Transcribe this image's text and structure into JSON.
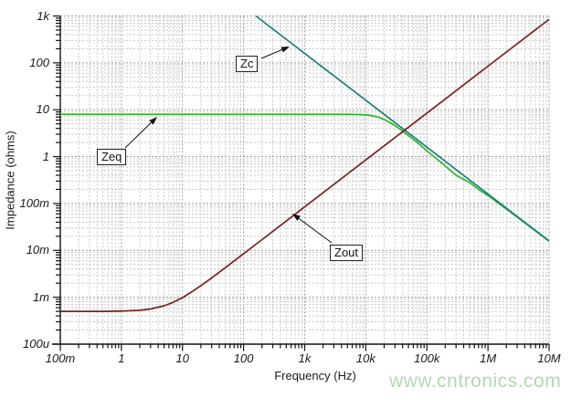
{
  "watermark": {
    "text": "www.cntronics.com",
    "color": "#b2d8b2"
  },
  "axes": {
    "x_title": "Frequency (Hz)",
    "y_title": "Impedance (ohms)",
    "x_ticks": [
      {
        "label": "100m",
        "value": 0.1
      },
      {
        "label": "1",
        "value": 1
      },
      {
        "label": "10",
        "value": 10
      },
      {
        "label": "100",
        "value": 100
      },
      {
        "label": "1k",
        "value": 1000
      },
      {
        "label": "10k",
        "value": 10000
      },
      {
        "label": "100k",
        "value": 100000
      },
      {
        "label": "1M",
        "value": 1000000
      },
      {
        "label": "10M",
        "value": 10000000
      }
    ],
    "y_ticks": [
      {
        "label": "1k",
        "value": 1000
      },
      {
        "label": "100",
        "value": 100
      },
      {
        "label": "10",
        "value": 10
      },
      {
        "label": "1",
        "value": 1
      },
      {
        "label": "100m",
        "value": 0.1
      },
      {
        "label": "10m",
        "value": 0.01
      },
      {
        "label": "1m",
        "value": 0.001
      },
      {
        "label": "100u",
        "value": 0.0001
      }
    ]
  },
  "chart_data": {
    "type": "line",
    "title": "",
    "xlabel": "Frequency (Hz)",
    "ylabel": "Impedance (ohms)",
    "x_scale": "log",
    "y_scale": "log",
    "xlim": [
      0.1,
      10000000
    ],
    "ylim": [
      0.0001,
      1000
    ],
    "grid": true,
    "legend_position": "inline-callouts",
    "colors": {
      "grid_major": "#9b9b9b",
      "grid_minor": "#c6c6c6",
      "axis": "#111111",
      "arrow": "#111111"
    },
    "series": [
      {
        "name": "Zeq",
        "color": "#29b829",
        "points": [
          [
            0.1,
            8
          ],
          [
            1,
            8
          ],
          [
            10,
            8
          ],
          [
            100,
            8
          ],
          [
            1000,
            8
          ],
          [
            3000,
            7.98
          ],
          [
            6000,
            7.95
          ],
          [
            8000,
            7.9
          ],
          [
            10000,
            7.75
          ],
          [
            12000,
            7.55
          ],
          [
            16000,
            7.0
          ],
          [
            20000,
            6.2
          ],
          [
            25000,
            5.3
          ],
          [
            30000,
            4.6
          ],
          [
            40000,
            3.5
          ],
          [
            50000,
            2.8
          ],
          [
            70000,
            2.0
          ],
          [
            100000,
            1.32
          ],
          [
            150000,
            0.86
          ],
          [
            200000,
            0.63
          ],
          [
            300000,
            0.4
          ],
          [
            500000,
            0.28
          ],
          [
            700000,
            0.2
          ],
          [
            1000000,
            0.148
          ],
          [
            2000000,
            0.0763
          ],
          [
            5000000,
            0.0311
          ],
          [
            10000000,
            0.0157
          ]
        ]
      },
      {
        "name": "Zc",
        "color": "#1b7e7d",
        "points": [
          [
            159.2,
            1000
          ],
          [
            1591.5,
            100
          ],
          [
            15915,
            10
          ],
          [
            159155,
            1
          ],
          [
            1591549,
            0.1
          ],
          [
            10000000,
            0.0159
          ]
        ]
      },
      {
        "name": "Zout",
        "color": "#7a2020",
        "points": [
          [
            0.1,
            0.0005
          ],
          [
            0.5,
            0.000501
          ],
          [
            1,
            0.000507
          ],
          [
            2,
            0.000528
          ],
          [
            3,
            0.000561
          ],
          [
            5,
            0.000656
          ],
          [
            7,
            0.000776
          ],
          [
            10,
            0.000985
          ],
          [
            15,
            0.00137
          ],
          [
            20,
            0.00177
          ],
          [
            30,
            0.00259
          ],
          [
            50,
            0.00427
          ],
          [
            70,
            0.00596
          ],
          [
            100,
            0.00849
          ],
          [
            200,
            0.01697
          ],
          [
            500,
            0.0424
          ],
          [
            1000,
            0.0848
          ],
          [
            10000,
            0.848
          ],
          [
            100000,
            8.48
          ],
          [
            1000000,
            84.8
          ],
          [
            10000000,
            848
          ]
        ]
      }
    ],
    "annotations": [
      {
        "label": "Zc",
        "box_left": 258,
        "box_top": 61,
        "tail": [
          286,
          64
        ],
        "tip": [
          317,
          51
        ]
      },
      {
        "label": "Zeq",
        "box_left": 106,
        "box_top": 163,
        "tail": [
          137,
          162
        ],
        "tip": [
          172,
          128
        ]
      },
      {
        "label": "Zout",
        "box_left": 361,
        "box_top": 268,
        "tail": [
          363,
          266
        ],
        "tip": [
          320,
          234
        ]
      }
    ]
  }
}
